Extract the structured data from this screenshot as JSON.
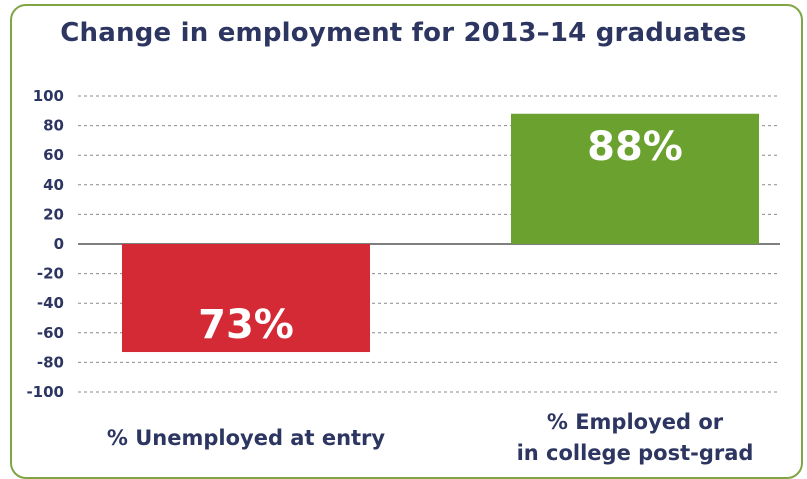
{
  "chart_data": {
    "type": "bar",
    "title": "Change in employment for 2013–14 graduates",
    "xlabel": "",
    "ylabel": "",
    "ylim": [
      -100,
      100
    ],
    "yticks": [
      100,
      80,
      60,
      40,
      20,
      0,
      -20,
      -40,
      -60,
      -80,
      -100
    ],
    "categories": [
      [
        "% Unemployed at entry"
      ],
      [
        "% Employed or",
        "in college post-grad"
      ]
    ],
    "values": [
      -73,
      88
    ],
    "data_labels": [
      "73%",
      "88%"
    ],
    "bar_colors": [
      "#d42a35",
      "#6aa12f"
    ],
    "grid": "horizontal-dashed",
    "legend": "none"
  },
  "colors": {
    "border": "#7fa545",
    "text": "#2d3561",
    "grid": "#8a8a8a",
    "zero_line": "#555555"
  }
}
